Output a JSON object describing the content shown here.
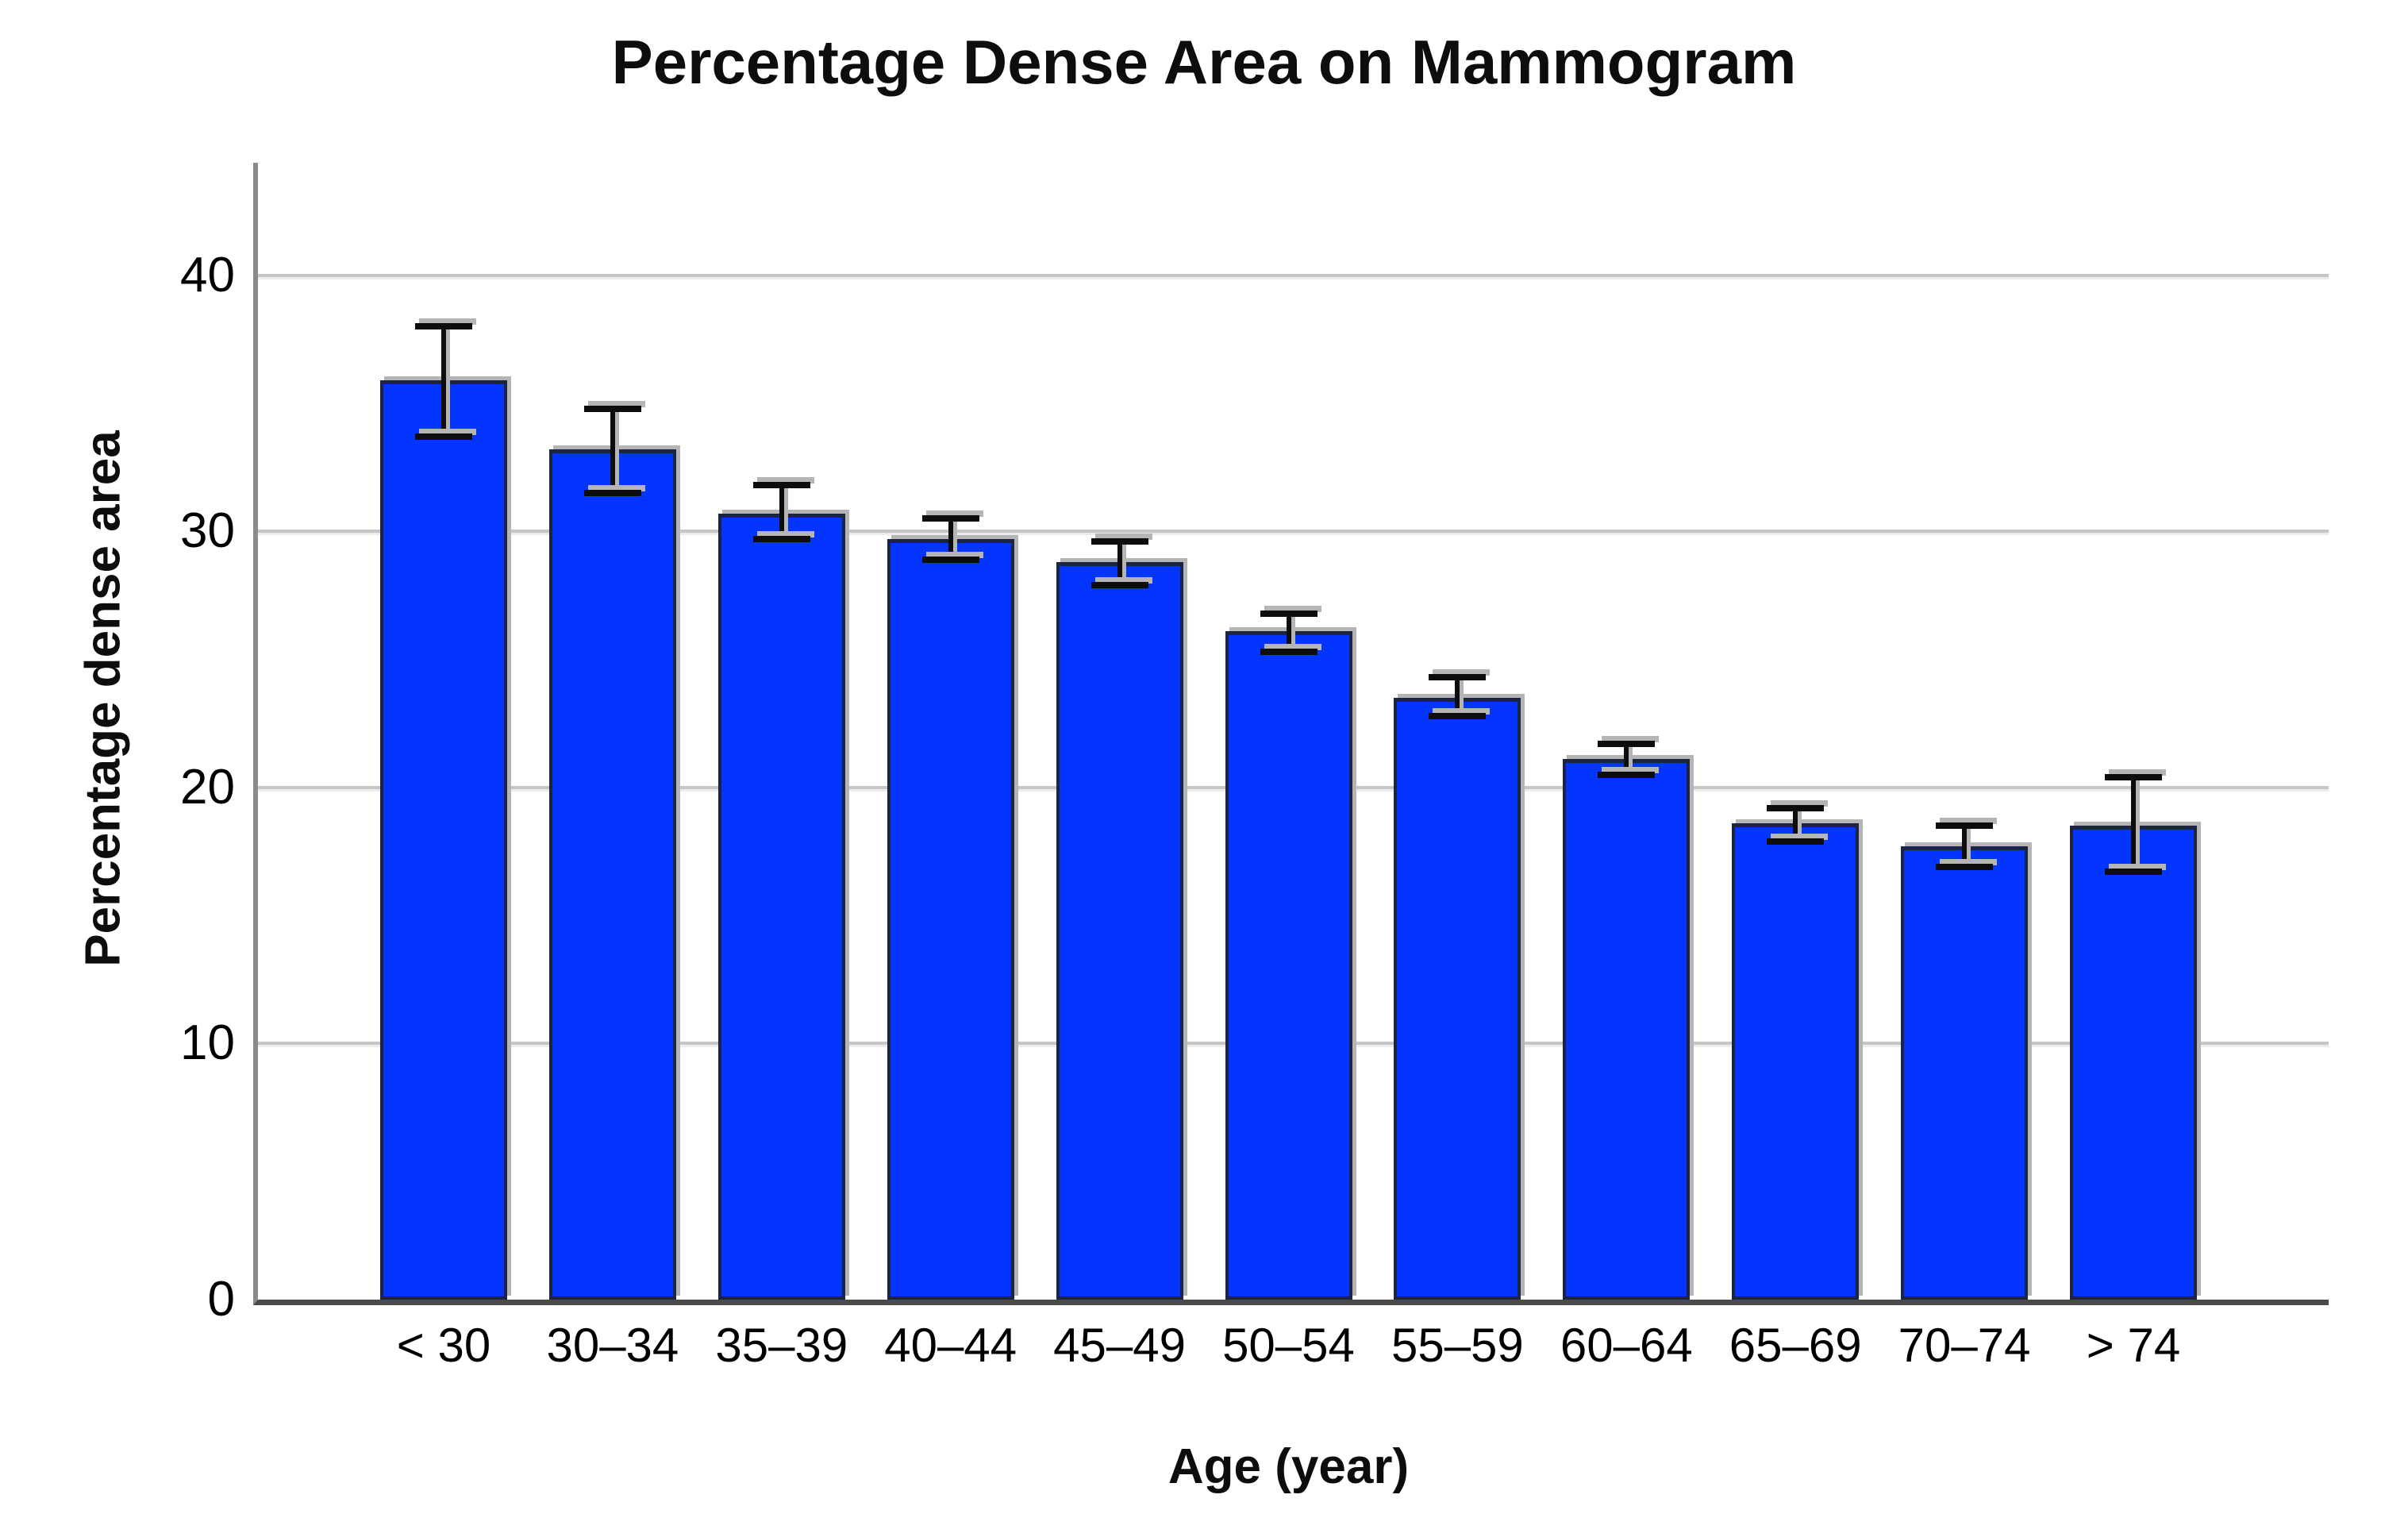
{
  "chart_data": {
    "type": "bar",
    "title": "Percentage Dense Area on Mammogram",
    "xlabel": "Age (year)",
    "ylabel": "Percentage dense area",
    "categories": [
      "< 30",
      "30–34",
      "35–39",
      "40–44",
      "45–49",
      "50–54",
      "55–59",
      "60–64",
      "65–69",
      "70–74",
      "> 74"
    ],
    "values": [
      35.9,
      33.2,
      30.7,
      29.7,
      28.8,
      26.1,
      23.5,
      21.1,
      18.6,
      17.7,
      18.5
    ],
    "error_high": [
      38.0,
      34.8,
      31.8,
      30.5,
      29.6,
      26.8,
      24.3,
      21.7,
      19.2,
      18.5,
      20.4
    ],
    "error_low": [
      33.7,
      31.5,
      29.7,
      28.9,
      27.9,
      25.3,
      22.8,
      20.5,
      17.9,
      16.9,
      16.7
    ],
    "yticks": [
      0,
      10,
      20,
      30,
      40
    ],
    "ylim": [
      0,
      44.4
    ],
    "grid": true,
    "legend": "none",
    "colors": {
      "bar_fill": "#0435ff",
      "bar_border": "#1b2440",
      "error_bar": "#0d0d0d",
      "gridline": "#c6c6c6",
      "y_axis": "#8a8a8a",
      "x_axis": "#4a4a4a",
      "text": "#000000"
    }
  }
}
